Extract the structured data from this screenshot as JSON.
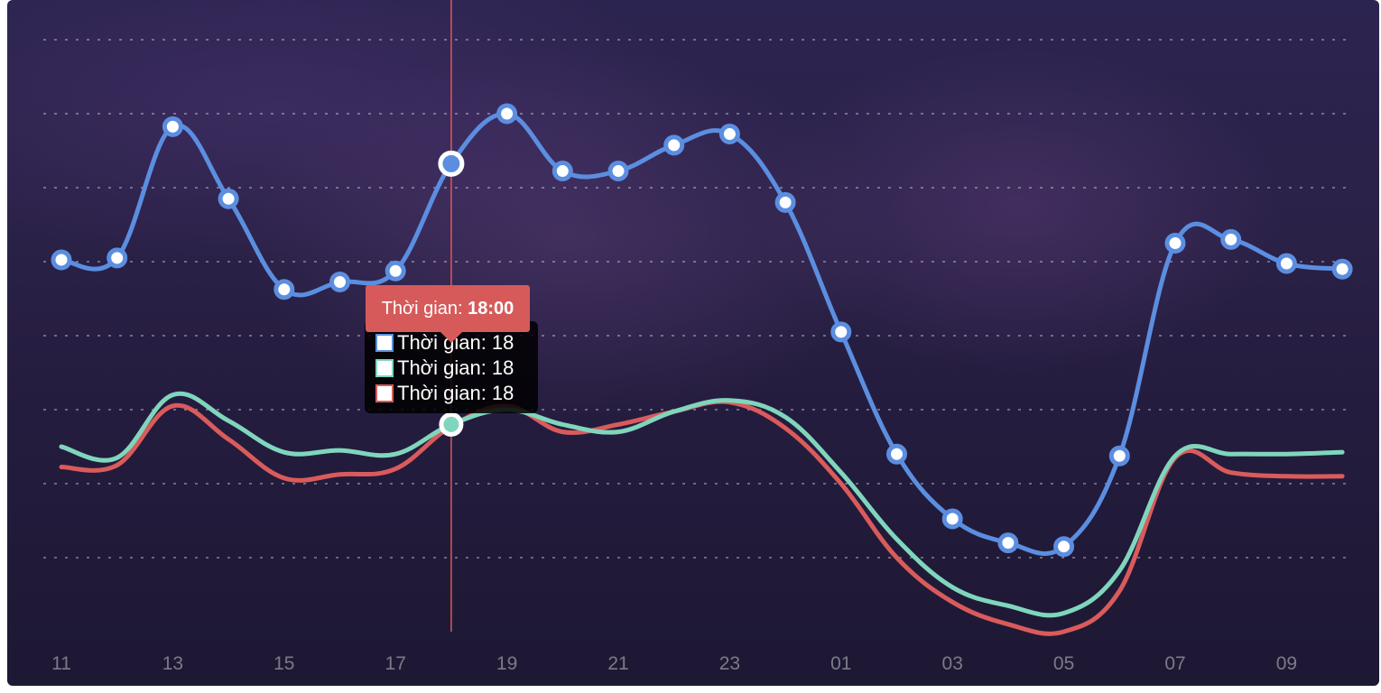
{
  "chart_data": {
    "type": "line",
    "x": [
      "11",
      "12",
      "13",
      "14",
      "15",
      "16",
      "17",
      "18",
      "19",
      "20",
      "21",
      "22",
      "23",
      "00",
      "01",
      "02",
      "03",
      "04",
      "05",
      "06",
      "07",
      "08",
      "09",
      "10"
    ],
    "tick_labels": [
      "11",
      "13",
      "15",
      "17",
      "19",
      "21",
      "23",
      "01",
      "03",
      "05",
      "07",
      "09"
    ],
    "series": [
      {
        "color": "#5b8ee0",
        "values": [
          60.5,
          61,
          96.5,
          77,
          52.5,
          54.5,
          57.5,
          86.5,
          100,
          84.5,
          84.5,
          91.5,
          94.5,
          76,
          41,
          8,
          -9.5,
          -16,
          -17,
          7.5,
          65,
          66,
          59.5,
          58
        ]
      },
      {
        "color": "#7fd6bc",
        "values": [
          10,
          7,
          24,
          17,
          8.5,
          9,
          8,
          16,
          20,
          16,
          14,
          19.5,
          22.5,
          18,
          3,
          -15,
          -28,
          -33,
          -35,
          -23.5,
          7.5,
          8,
          8,
          8.5
        ]
      },
      {
        "color": "#d95b5b",
        "values": [
          4.5,
          5,
          21,
          12,
          1.5,
          2.5,
          4,
          15.5,
          21,
          14,
          16,
          19.5,
          22,
          15,
          0,
          -20,
          -32,
          -38,
          -40,
          -29,
          7,
          3,
          2,
          2
        ]
      }
    ],
    "ylim": [
      -40,
      120
    ],
    "grid": true,
    "hover_index": 7,
    "tooltip": {
      "title_prefix": "Thời gian: ",
      "title_value": "18:00",
      "rows": [
        "Thời gian: 18",
        "Thời gian: 18",
        "Thời gian: 18"
      ]
    }
  }
}
